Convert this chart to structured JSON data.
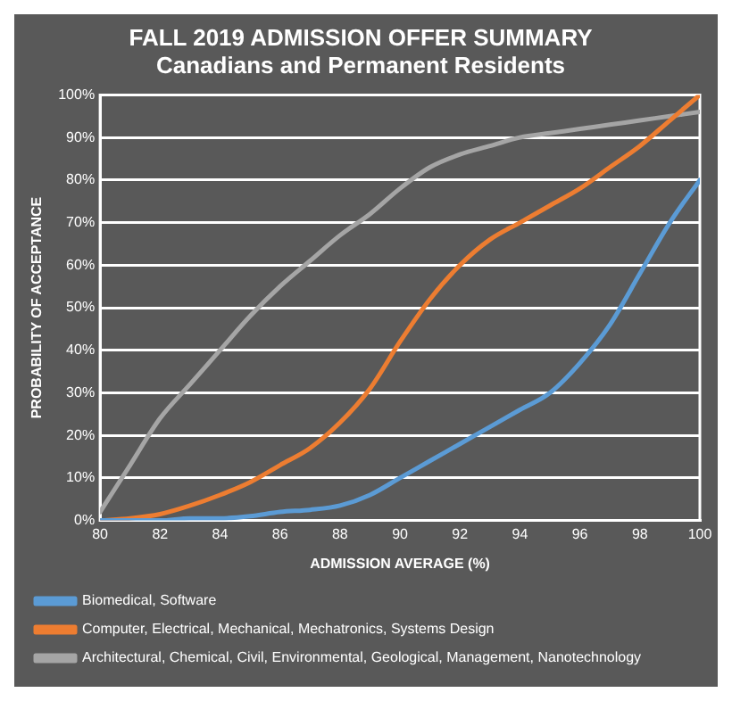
{
  "chart_data": {
    "type": "line",
    "title": [
      "FALL 2019 ADMISSION OFFER SUMMARY",
      "Canadians and Permanent Residents"
    ],
    "xlabel": "ADMISSION AVERAGE (%)",
    "ylabel": "PROBABILITY OF ACCEPTANCE",
    "x": [
      80,
      81,
      82,
      83,
      84,
      85,
      86,
      87,
      88,
      89,
      90,
      91,
      92,
      93,
      94,
      95,
      96,
      97,
      98,
      99,
      100
    ],
    "series": [
      {
        "name": "Biomedical, Software",
        "color": "#5b9bd5",
        "values": [
          0,
          0,
          0,
          0.5,
          0.5,
          1,
          2,
          2.5,
          3.5,
          6,
          10,
          14,
          18,
          22,
          26,
          30,
          37,
          46,
          58,
          70,
          80
        ]
      },
      {
        "name": "Computer, Electrical, Mechanical, Mechatronics, Systems Design",
        "color": "#ed7d31",
        "values": [
          0,
          0.5,
          1.5,
          3.5,
          6,
          9,
          13,
          17,
          23,
          31,
          42,
          52,
          60,
          66,
          70,
          74,
          78,
          83,
          88,
          94,
          100
        ]
      },
      {
        "name": "Architectural, Chemical, Civil, Environmental, Geological, Management, Nanotechnology",
        "color": "#a5a5a5",
        "values": [
          2,
          13,
          24,
          32,
          40,
          48,
          55,
          61,
          67,
          72,
          78,
          83,
          86,
          88,
          90,
          91,
          92,
          93,
          94,
          95,
          96
        ]
      }
    ],
    "xlim": [
      80,
      100
    ],
    "xticks": [
      80,
      82,
      84,
      86,
      88,
      90,
      92,
      94,
      96,
      98,
      100
    ],
    "ylim": [
      0,
      100
    ],
    "yticks": [
      {
        "value": 0,
        "label": "0%"
      },
      {
        "value": 10,
        "label": "10%"
      },
      {
        "value": 20,
        "label": "20%"
      },
      {
        "value": 30,
        "label": "30%"
      },
      {
        "value": 40,
        "label": "40%"
      },
      {
        "value": 50,
        "label": "50%"
      },
      {
        "value": 60,
        "label": "60%"
      },
      {
        "value": 70,
        "label": "70%"
      },
      {
        "value": 80,
        "label": "80%"
      },
      {
        "value": 90,
        "label": "90%"
      },
      {
        "value": 100,
        "label": "100%"
      }
    ],
    "grid": "y",
    "legend": "bottom",
    "marker": "none",
    "line_style": "solid"
  }
}
